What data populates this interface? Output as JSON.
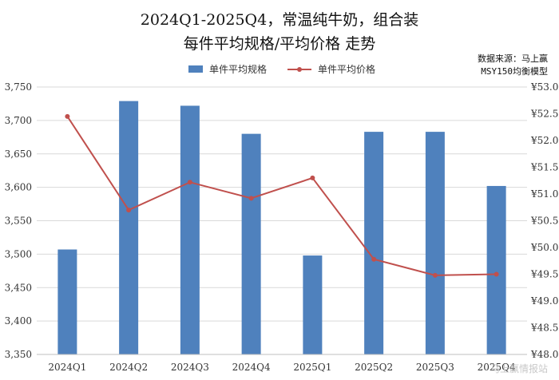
{
  "title_line1": "2024Q1-2025Q4，常温纯牛奶，组合装",
  "title_line2": "每件平均规格/平均价格 走势",
  "source_line1": "数据来源：马上赢",
  "source_line2": "MSY150均衡模型",
  "watermark": "马上赢情报站",
  "colors": {
    "bar": "#4f81bd",
    "line": "#c0504d",
    "grid": "#d9d9d9"
  },
  "chart_data": {
    "type": "bar",
    "categories": [
      "2024Q1",
      "2024Q2",
      "2024Q3",
      "2024Q4",
      "2025Q1",
      "2025Q2",
      "2025Q3",
      "2025Q4"
    ],
    "series": [
      {
        "name": "单件平均规格",
        "type": "bar",
        "axis": "left",
        "values": [
          3507,
          3729,
          3722,
          3680,
          3498,
          3683,
          3683,
          3602
        ]
      },
      {
        "name": "单件平均价格",
        "type": "line",
        "axis": "right",
        "values": [
          52.45,
          50.7,
          51.22,
          50.92,
          51.3,
          49.78,
          49.48,
          49.5
        ]
      }
    ],
    "y_left": {
      "ylim": [
        3350,
        3750
      ],
      "ticks": [
        "3,350",
        "3,400",
        "3,450",
        "3,500",
        "3,550",
        "3,600",
        "3,650",
        "3,700",
        "3,750"
      ]
    },
    "y_right": {
      "ylim": [
        48.0,
        53.0
      ],
      "ticks": [
        "¥48.00",
        "¥48.50",
        "¥49.00",
        "¥49.50",
        "¥50.00",
        "¥50.50",
        "¥51.00",
        "¥51.50",
        "¥52.00",
        "¥52.50",
        "¥53.00"
      ]
    },
    "grid": true,
    "legend": "top"
  }
}
